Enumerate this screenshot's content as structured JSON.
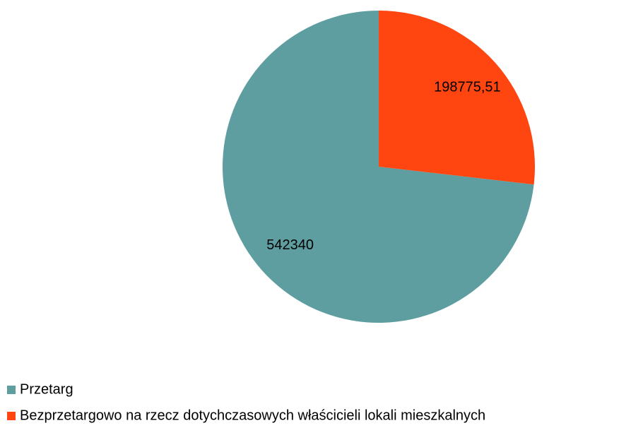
{
  "chart_data": {
    "type": "pie",
    "categories": [
      "Przetarg",
      "Bezprzetargowo na rzecz dotychczasowych właścicieli lokali mieszkalnych"
    ],
    "values": [
      542340,
      198775.51
    ],
    "value_labels": [
      "542340",
      "198775,51"
    ],
    "colors": [
      "#5f9ea0",
      "#ff4510"
    ],
    "legend": "bottom-left"
  }
}
